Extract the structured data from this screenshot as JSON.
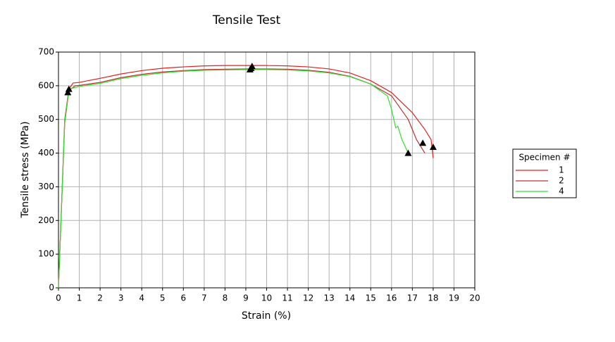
{
  "chart_data": {
    "type": "line",
    "title": "Tensile Test",
    "x_label": "Strain (%)",
    "y_label": "Tensile stress (MPa)",
    "xlim": [
      0,
      20
    ],
    "xticks": [
      0,
      1,
      2,
      3,
      4,
      5,
      6,
      7,
      8,
      9,
      10,
      11,
      12,
      13,
      14,
      15,
      16,
      17,
      18,
      19,
      20
    ],
    "ylim": [
      0,
      700
    ],
    "yticks": [
      0,
      100,
      200,
      300,
      400,
      500,
      600,
      700
    ],
    "grid": true,
    "legend_title": "Specimen #",
    "legend_position": "right",
    "series": [
      {
        "name": "1",
        "color": "#e02020",
        "x": [
          0,
          0.3,
          0.5,
          0.7,
          1,
          2,
          3,
          4,
          5,
          6,
          7,
          8,
          9,
          10,
          11,
          12,
          13,
          14,
          15,
          16,
          17,
          17.6,
          17.9,
          18
        ],
        "values": [
          0,
          500,
          590,
          608,
          610,
          622,
          635,
          645,
          652,
          656,
          659,
          660,
          660,
          660,
          659,
          656,
          650,
          638,
          615,
          580,
          520,
          470,
          440,
          385
        ]
      },
      {
        "name": "2",
        "color": "#c03030",
        "x": [
          0,
          0.3,
          0.5,
          0.8,
          1,
          2,
          3,
          4,
          5,
          6,
          7,
          8,
          9,
          10,
          11,
          12,
          13,
          14,
          15,
          16,
          16.8,
          17.2,
          17.6
        ],
        "values": [
          0,
          490,
          585,
          600,
          601,
          610,
          624,
          634,
          641,
          645,
          648,
          649,
          650,
          650,
          649,
          646,
          640,
          628,
          605,
          570,
          500,
          440,
          400
        ]
      },
      {
        "name": "4",
        "color": "#30e030",
        "x": [
          0,
          0.3,
          0.5,
          1,
          2,
          3,
          4,
          5,
          6,
          7,
          8,
          9,
          10,
          11,
          12,
          13,
          14,
          15,
          15.8,
          16,
          16.2,
          16.3,
          16.5,
          16.8
        ],
        "values": [
          0,
          495,
          590,
          598,
          607,
          621,
          631,
          638,
          643,
          646,
          647,
          648,
          648,
          647,
          644,
          638,
          627,
          605,
          570,
          530,
          475,
          480,
          440,
          400
        ]
      }
    ],
    "markers": {
      "color": "#000000",
      "x": [
        0.45,
        0.5,
        9.2,
        9.25,
        9.3,
        16.8,
        17.5,
        18
      ],
      "y": [
        580,
        590,
        648,
        652,
        658,
        400,
        430,
        418
      ]
    }
  }
}
